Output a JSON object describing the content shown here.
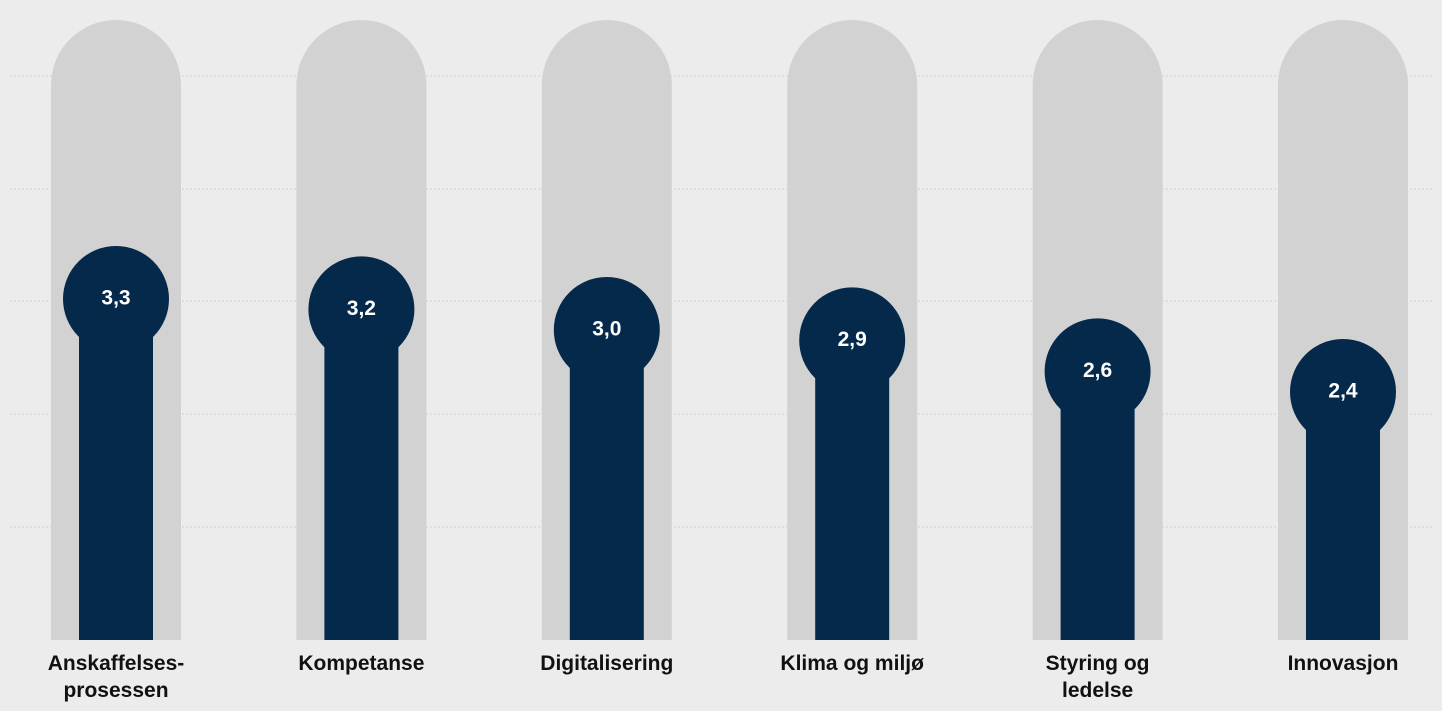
{
  "chart_data": {
    "type": "lollipop-bar",
    "categories": [
      "Anskaffelses-prosessen",
      "Kompetanse",
      "Digitalisering",
      "Klima og miljø",
      "Styring og ledelse",
      "Innovasjon"
    ],
    "values": [
      3.3,
      3.2,
      3.0,
      2.9,
      2.6,
      2.4
    ],
    "value_labels": [
      "3,3",
      "3,2",
      "3,0",
      "2,9",
      "2,6",
      "2,4"
    ],
    "color": "#05294b",
    "ylim": [
      0,
      6
    ]
  }
}
